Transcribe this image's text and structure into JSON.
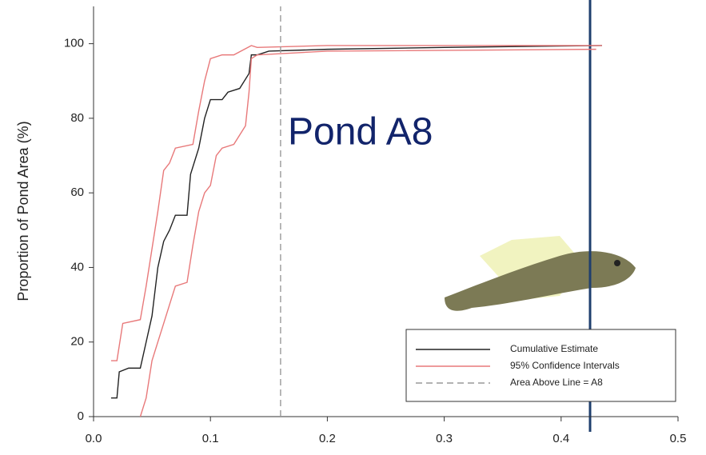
{
  "chart_data": {
    "type": "line",
    "ylabel": "Proportion of Pond Area (%)",
    "annotation": "Pond A8",
    "xlim": [
      0,
      0.5
    ],
    "ylim": [
      0,
      110
    ],
    "xticks": [
      {
        "value": 0,
        "label": "0.0"
      },
      0.1,
      0.2,
      0.3,
      0.4,
      0.5
    ],
    "yticks": [
      0,
      20,
      40,
      60,
      80,
      100
    ],
    "legend": "lower right",
    "series": [
      {
        "name": "Cumulative Estimate",
        "color": "#222222",
        "dash": false,
        "x": [
          0.015,
          0.02,
          0.022,
          0.03,
          0.04,
          0.045,
          0.05,
          0.055,
          0.06,
          0.065,
          0.07,
          0.08,
          0.083,
          0.09,
          0.095,
          0.1,
          0.11,
          0.115,
          0.125,
          0.133,
          0.135,
          0.14,
          0.15,
          0.2,
          0.3,
          0.435
        ],
        "values": [
          5,
          5,
          12,
          13,
          13,
          20,
          27,
          40,
          47,
          50,
          54,
          54,
          65,
          72,
          80,
          85,
          85,
          87,
          88,
          92,
          97,
          97,
          98,
          98.5,
          99,
          99.5
        ]
      },
      {
        "name": "95% Confidence Intervals",
        "color": "#e8797a",
        "dash": false,
        "x": [
          0.015,
          0.02,
          0.025,
          0.04,
          0.045,
          0.05,
          0.055,
          0.06,
          0.065,
          0.07,
          0.085,
          0.09,
          0.095,
          0.1,
          0.11,
          0.12,
          0.135,
          0.14,
          0.2,
          0.435
        ],
        "values": [
          15,
          15,
          25,
          26,
          35,
          45,
          55,
          66,
          68,
          72,
          73,
          82,
          90,
          96,
          97,
          97,
          99.5,
          99,
          99.5,
          99.5
        ]
      },
      {
        "name": null,
        "color": "#e8797a",
        "dash": false,
        "x": [
          0.04,
          0.045,
          0.05,
          0.055,
          0.06,
          0.065,
          0.07,
          0.08,
          0.085,
          0.09,
          0.095,
          0.1,
          0.105,
          0.11,
          0.12,
          0.13,
          0.133,
          0.135,
          0.14,
          0.2,
          0.43
        ],
        "values": [
          0,
          5,
          15,
          20,
          25,
          30,
          35,
          36,
          46,
          55,
          60,
          62,
          70,
          72,
          73,
          78,
          87,
          96,
          97,
          98,
          98.5
        ]
      },
      {
        "name": "Area Above Line = A8",
        "color": "#999999",
        "dash": true,
        "x": [
          0.16,
          0.16
        ],
        "values": [
          0,
          110
        ]
      }
    ]
  }
}
